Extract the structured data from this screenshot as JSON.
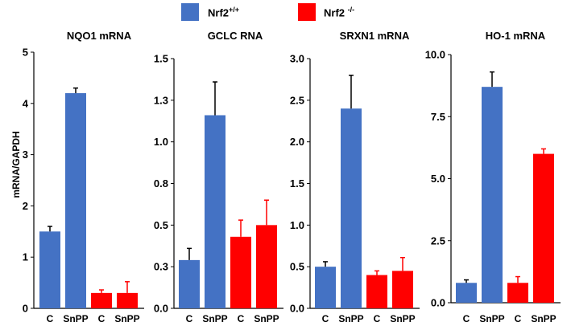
{
  "legend": {
    "wt": {
      "base": "Nrf2",
      "sup": "+/+",
      "color": "#4472C4"
    },
    "ko": {
      "base": "Nrf2 ",
      "sup": "-/-",
      "color": "#FF0000"
    }
  },
  "ylabel": "mRNA/GAPDH",
  "chart_data": [
    {
      "type": "bar",
      "title": "NQO1 mRNA",
      "categories": [
        "C",
        "SnPP",
        "C",
        "SnPP"
      ],
      "groups": [
        "Nrf2+/+",
        "Nrf2+/+",
        "Nrf2-/-",
        "Nrf2-/-"
      ],
      "values": [
        1.5,
        4.2,
        0.3,
        0.3
      ],
      "errors": [
        0.1,
        0.1,
        0.06,
        0.22
      ],
      "ylim": [
        0,
        5
      ],
      "ticks": [
        "0",
        "1",
        "2",
        "3",
        "4",
        "5"
      ]
    },
    {
      "type": "bar",
      "title": "GCLC RNA",
      "categories": [
        "C",
        "SnPP",
        "C",
        "SnPP"
      ],
      "groups": [
        "Nrf2+/+",
        "Nrf2+/+",
        "Nrf2-/-",
        "Nrf2-/-"
      ],
      "values": [
        0.29,
        1.16,
        0.43,
        0.5
      ],
      "errors": [
        0.07,
        0.2,
        0.1,
        0.15
      ],
      "ylim": [
        0,
        1.5
      ],
      "ticks": [
        "0.0",
        "0.3",
        "0.5",
        "0.8",
        "1.0",
        "1.3",
        "1.5"
      ]
    },
    {
      "type": "bar",
      "title": "SRXN1 mRNA",
      "categories": [
        "C",
        "SnPP",
        "C",
        "SnPP"
      ],
      "groups": [
        "Nrf2+/+",
        "Nrf2+/+",
        "Nrf2-/-",
        "Nrf2-/-"
      ],
      "values": [
        0.5,
        2.4,
        0.4,
        0.45
      ],
      "errors": [
        0.06,
        0.4,
        0.05,
        0.16
      ],
      "ylim": [
        0,
        3.0
      ],
      "ticks": [
        "0.0",
        "0.5",
        "1.0",
        "1.5",
        "2.0",
        "2.5",
        "3.0"
      ]
    },
    {
      "type": "bar",
      "title": "HO-1 mRNA",
      "categories": [
        "C",
        "SnPP",
        "C",
        "SnPP"
      ],
      "groups": [
        "Nrf2+/+",
        "Nrf2+/+",
        "Nrf2-/-",
        "Nrf2-/-"
      ],
      "values": [
        0.8,
        8.7,
        0.8,
        6.0
      ],
      "errors": [
        0.12,
        0.6,
        0.25,
        0.2
      ],
      "ylim": [
        0,
        10.0
      ],
      "ticks": [
        "0.0",
        "2.5",
        "5.0",
        "7.5",
        "10.0"
      ]
    }
  ]
}
